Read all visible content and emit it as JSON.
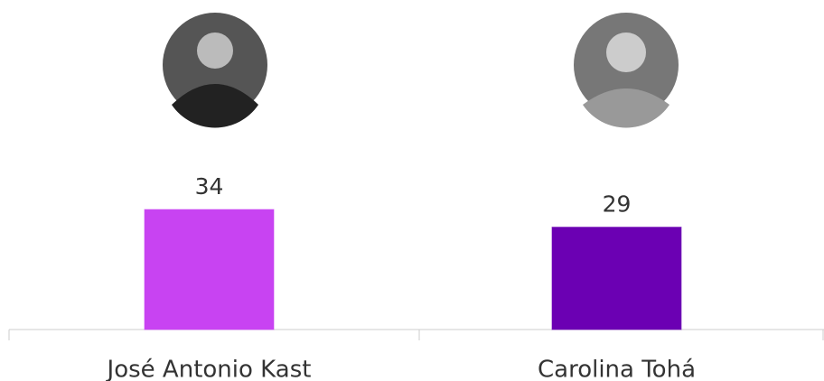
{
  "chart_data": {
    "type": "bar",
    "categories": [
      "José Antonio Kast",
      "Carolina Tohá"
    ],
    "values": [
      34,
      29
    ],
    "colors": [
      "#c843f2",
      "#6b00b3"
    ]
  }
}
